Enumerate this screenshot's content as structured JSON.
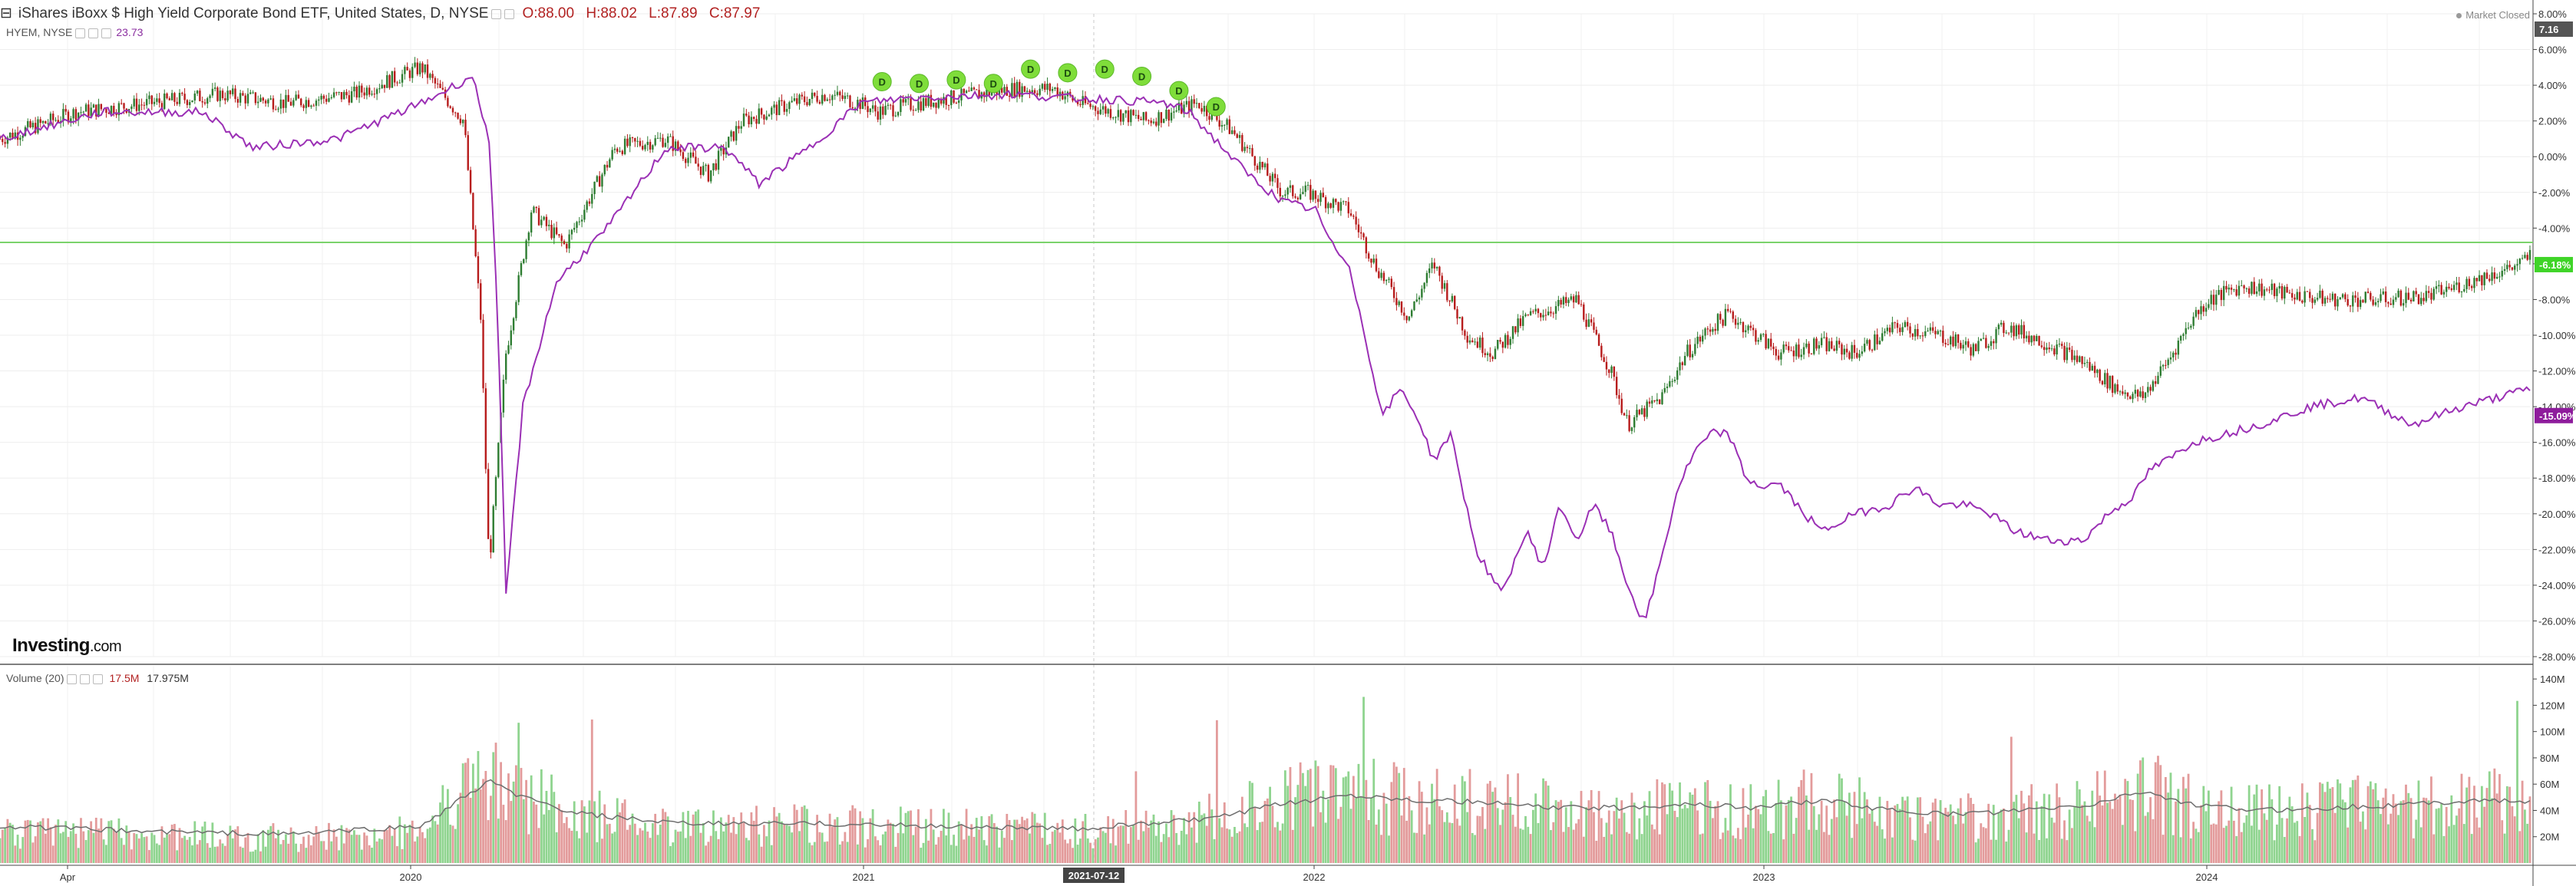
{
  "header": {
    "title": "iShares iBoxx $ High Yield Corporate Bond ETF, United States, D, NYSE",
    "open": "O:88.00",
    "high": "H:88.02",
    "low": "L:87.89",
    "close": "C:87.97",
    "compare_symbol": "HYEM, NYSE",
    "compare_value": "23.73",
    "market_status": "Market Closed",
    "watermark_main": "Investing",
    "watermark_suffix": ".com"
  },
  "volume_legend": {
    "label": "Volume (20)",
    "value_1": "17.5M",
    "value_2": "17.975M"
  },
  "colors": {
    "up": "#2e7d32",
    "down": "#b71c1c",
    "compare_line": "#9b30b5",
    "vol_up": "#8fd48f",
    "vol_down": "#e39b9b",
    "vol_ma": "#6d6d6d",
    "hline": "#7bd36b",
    "dividend": "#7fdd3a"
  },
  "chart_data": [
    {
      "type": "line",
      "title": "iShares iBoxx $ High Yield Corporate Bond ETF, United States, D, NYSE",
      "ylabel": "",
      "ylim": [
        -28,
        8
      ],
      "x_ticks": [
        "Apr",
        "2020",
        "2021",
        "2021-07-12",
        "2022",
        "2023",
        "2024"
      ],
      "y_ticks": [
        "8.00%",
        "6.00%",
        "4.00%",
        "2.00%",
        "0.00%",
        "-2.00%",
        "-4.00%",
        "-6.00%",
        "-8.00%",
        "-10.00%",
        "-12.00%",
        "-14.00%",
        "-16.00%",
        "-18.00%",
        "-20.00%",
        "-22.00%",
        "-24.00%",
        "-26.00%",
        "-28.00%"
      ],
      "price_axis_label": "7.16",
      "axis_badges": [
        "-6.18%",
        "-15.09%"
      ],
      "reference_line": -4.8,
      "grid": true,
      "series": [
        {
          "name": "",
          "x": [
            0,
            45,
            90,
            130,
            170,
            210,
            250,
            275,
            285,
            290,
            300,
            315,
            335,
            365,
            395,
            420,
            440,
            470,
            490,
            510,
            520,
            545,
            565,
            580,
            600,
            625,
            640,
            680,
            710,
            730,
            760,
            775,
            800,
            815,
            835,
            850,
            870,
            885,
            905,
            935,
            955,
            965,
            985,
            1000,
            1015,
            1025,
            1055,
            1080,
            1100,
            1125,
            1150,
            1170,
            1190,
            1215,
            1235,
            1255,
            1270,
            1285,
            1300,
            1310,
            1330,
            1350,
            1380,
            1410,
            1440,
            1480,
            1495,
            1500
          ],
          "values": [
            1,
            2.5,
            3,
            3.5,
            3,
            3.5,
            5,
            2,
            -9,
            -23,
            -11,
            -3,
            -5,
            0.5,
            1,
            -1,
            2,
            3,
            3.5,
            3,
            2.5,
            3,
            3.3,
            3.5,
            3.8,
            3.8,
            3,
            2,
            3,
            1.5,
            -2,
            -2,
            -3,
            -6,
            -9,
            -6,
            -10,
            -11,
            -9,
            -8,
            -12,
            -15,
            -13.5,
            -11,
            -9.5,
            -8.8,
            -11,
            -10.5,
            -11,
            -9.5,
            -10,
            -10.8,
            -9.5,
            -10.5,
            -11.5,
            -13,
            -13.5,
            -11.5,
            -9,
            -8,
            -7.2,
            -7.6,
            -8,
            -8,
            -7.8,
            -6.5,
            -6,
            -5.5
          ]
        },
        {
          "name": "HYEM, NYSE",
          "x": [
            0,
            60,
            120,
            150,
            200,
            250,
            280,
            290,
            295,
            300,
            310,
            330,
            360,
            395,
            430,
            450,
            480,
            510,
            540,
            570,
            600,
            630,
            660,
            690,
            705,
            720,
            740,
            760,
            780,
            790,
            800,
            810,
            820,
            830,
            840,
            850,
            860,
            875,
            890,
            905,
            915,
            925,
            935,
            945,
            955,
            965,
            975,
            985,
            995,
            1005,
            1015,
            1025,
            1035,
            1045,
            1055,
            1065,
            1080,
            1100,
            1120,
            1135,
            1150,
            1165,
            1180,
            1195,
            1215,
            1235,
            1250,
            1265,
            1275,
            1285,
            1300,
            1320,
            1340,
            1370,
            1400,
            1430,
            1460,
            1480,
            1500
          ],
          "values": [
            1,
            2.5,
            2.5,
            0.5,
            1,
            3,
            4.5,
            1,
            -9,
            -24.5,
            -14,
            -7,
            -4,
            0.5,
            0.5,
            -1.5,
            0.5,
            3,
            3.3,
            3.4,
            3.5,
            3.3,
            3.2,
            3,
            2.5,
            1,
            -1,
            -2.5,
            -3,
            -5,
            -6,
            -10.5,
            -14.5,
            -13,
            -14.5,
            -17,
            -15.5,
            -22,
            -24.5,
            -21,
            -23,
            -19.5,
            -21.5,
            -19.5,
            -21,
            -24,
            -26.2,
            -22.5,
            -18.5,
            -16.5,
            -15.5,
            -15.5,
            -18,
            -18.5,
            -18.3,
            -19.5,
            -21,
            -20,
            -19.5,
            -18.5,
            -19.5,
            -19.5,
            -20,
            -21,
            -21.5,
            -21.5,
            -20,
            -19,
            -17.5,
            -17,
            -16,
            -15.5,
            -15,
            -14,
            -13.5,
            -15,
            -14,
            -13.5,
            -13
          ]
        }
      ],
      "dividend_markers": [
        {
          "x": 523,
          "y": 4.2,
          "label": "D"
        },
        {
          "x": 545,
          "y": 4.1,
          "label": "D"
        },
        {
          "x": 567,
          "y": 4.3,
          "label": "D"
        },
        {
          "x": 589,
          "y": 4.1,
          "label": "D"
        },
        {
          "x": 611,
          "y": 4.9,
          "label": "D"
        },
        {
          "x": 633,
          "y": 4.7,
          "label": "D"
        },
        {
          "x": 655,
          "y": 4.9,
          "label": "D"
        },
        {
          "x": 677,
          "y": 4.5,
          "label": "D"
        },
        {
          "x": 699,
          "y": 3.7,
          "label": "D"
        },
        {
          "x": 721,
          "y": 2.8,
          "label": "D"
        }
      ]
    },
    {
      "type": "bar",
      "title": "Volume (20)",
      "ylim": [
        0,
        150
      ],
      "y_ticks": [
        "140M",
        "120M",
        "100M",
        "80M",
        "60M",
        "40M",
        "20M"
      ],
      "series": [
        {
          "name": "Volume (20)",
          "x": [
            0,
            90,
            170,
            250,
            275,
            290,
            310,
            340,
            400,
            480,
            560,
            640,
            720,
            760,
            800,
            840,
            880,
            920,
            960,
            1000,
            1040,
            1080,
            1120,
            1160,
            1200,
            1240,
            1270,
            1300,
            1340,
            1380,
            1420,
            1470,
            1500
          ],
          "values": [
            25,
            22,
            20,
            25,
            55,
            65,
            55,
            40,
            28,
            30,
            28,
            25,
            35,
            50,
            55,
            50,
            48,
            45,
            40,
            45,
            40,
            50,
            40,
            35,
            40,
            45,
            60,
            45,
            40,
            42,
            45,
            50,
            45
          ]
        },
        {
          "name": "MA",
          "x": [
            0,
            90,
            170,
            250,
            275,
            290,
            310,
            340,
            400,
            480,
            560,
            640,
            720,
            760,
            800,
            840,
            880,
            920,
            960,
            1000,
            1040,
            1080,
            1120,
            1160,
            1200,
            1240,
            1270,
            1300,
            1340,
            1380,
            1420,
            1470,
            1500
          ],
          "values": [
            28,
            24,
            22,
            28,
            50,
            62,
            50,
            38,
            30,
            30,
            28,
            26,
            34,
            45,
            52,
            48,
            46,
            42,
            42,
            45,
            42,
            48,
            40,
            37,
            40,
            44,
            55,
            44,
            40,
            42,
            44,
            48,
            46
          ]
        }
      ]
    }
  ]
}
